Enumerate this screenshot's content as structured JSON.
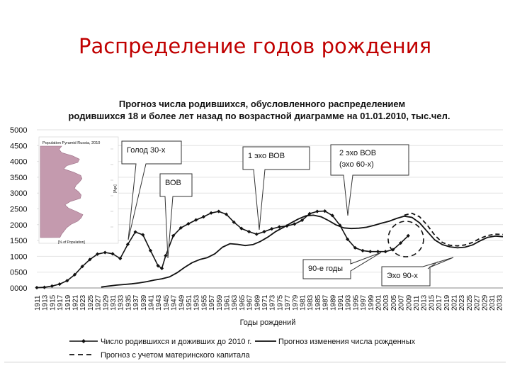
{
  "slide": {
    "title": "Распределение годов рождения"
  },
  "chart_data": {
    "type": "line",
    "title": "Прогноз числа родившихся, обусловленного распределением родившихся 18 и более лет назад по возрастной диаграмме на 01.01.2010, тыс.чел.",
    "title_lines": [
      "Прогноз числа родившихся, обусловленного распределением",
      "родившихся 18 и более лет назад  по возрастной диаграмме на 01.01.2010,  тыс.чел."
    ],
    "xlabel": "Годы рождений",
    "ylabel": "",
    "ylim": [
      0,
      5000
    ],
    "xlim": [
      1911,
      2034
    ],
    "y_tick_labels": [
      "0000",
      "0500",
      "1000",
      "1500",
      "2000",
      "2500",
      "3000",
      "3500",
      "4000",
      "4500",
      "5000"
    ],
    "x_tick_labels": [
      "1911",
      "1913",
      "1915",
      "1917",
      "1919",
      "1921",
      "1923",
      "1925",
      "1927",
      "1929",
      "1931",
      "1933",
      "1935",
      "1937",
      "1939",
      "1941",
      "1943",
      "1945",
      "1947",
      "1949",
      "1951",
      "1953",
      "1955",
      "1957",
      "1959",
      "1961",
      "1963",
      "1965",
      "1967",
      "1969",
      "1971",
      "1973",
      "1975",
      "1977",
      "1979",
      "1981",
      "1983",
      "1985",
      "1987",
      "1989",
      "1991",
      "1993",
      "1995",
      "1997",
      "1999",
      "2001",
      "2003",
      "2005",
      "2007",
      "2009",
      "2011",
      "2013",
      "2015",
      "2017",
      "2019",
      "2021",
      "2023",
      "2025",
      "2027",
      "2029",
      "2031",
      "2033"
    ],
    "grid": "horizontal",
    "legend_position": "bottom",
    "series": [
      {
        "name": "Число родившихся и доживших до 2010 г.",
        "style": "line-markers",
        "color": "#111111",
        "x": [
          1911,
          1913,
          1915,
          1917,
          1919,
          1921,
          1923,
          1925,
          1927,
          1929,
          1931,
          1933,
          1935,
          1937,
          1939,
          1941,
          1943,
          1944,
          1945,
          1947,
          1949,
          1951,
          1953,
          1955,
          1957,
          1959,
          1961,
          1963,
          1965,
          1967,
          1969,
          1971,
          1973,
          1975,
          1977,
          1979,
          1981,
          1983,
          1985,
          1987,
          1989,
          1991,
          1993,
          1995,
          1997,
          1999,
          2001,
          2003,
          2005,
          2007,
          2009
        ],
        "y": [
          10,
          20,
          60,
          120,
          230,
          420,
          680,
          900,
          1070,
          1120,
          1080,
          930,
          1380,
          1770,
          1680,
          1180,
          700,
          620,
          1020,
          1650,
          1900,
          2030,
          2150,
          2250,
          2370,
          2420,
          2330,
          2080,
          1880,
          1780,
          1700,
          1780,
          1870,
          1930,
          1960,
          2020,
          2140,
          2350,
          2420,
          2430,
          2290,
          1980,
          1540,
          1270,
          1180,
          1150,
          1150,
          1150,
          1210,
          1420,
          1650
        ]
      },
      {
        "name": "Прогноз изменения числа рожденных",
        "style": "line",
        "color": "#111111",
        "x": [
          1928,
          1930,
          1932,
          1934,
          1936,
          1938,
          1940,
          1942,
          1944,
          1946,
          1948,
          1950,
          1952,
          1954,
          1956,
          1958,
          1960,
          1962,
          1964,
          1966,
          1968,
          1970,
          1972,
          1974,
          1976,
          1978,
          1980,
          1982,
          1984,
          1986,
          1988,
          1990,
          1992,
          1994,
          1996,
          1998,
          2000,
          2002,
          2004,
          2006,
          2008,
          2010,
          2012,
          2014,
          2016,
          2018,
          2020,
          2022,
          2024,
          2026,
          2028,
          2030,
          2032,
          2034
        ],
        "y": [
          30,
          60,
          90,
          110,
          130,
          160,
          200,
          250,
          290,
          350,
          480,
          650,
          800,
          900,
          960,
          1080,
          1290,
          1400,
          1380,
          1340,
          1370,
          1470,
          1610,
          1780,
          1910,
          2050,
          2180,
          2280,
          2300,
          2250,
          2130,
          1990,
          1900,
          1880,
          1890,
          1920,
          1980,
          2050,
          2110,
          2200,
          2270,
          2230,
          2060,
          1790,
          1520,
          1370,
          1300,
          1270,
          1290,
          1360,
          1490,
          1600,
          1640,
          1620
        ]
      },
      {
        "name": "Прогноз с учетом материнского капитала",
        "style": "dashed",
        "color": "#111111",
        "x": [
          2008,
          2010,
          2012,
          2014,
          2016,
          2018,
          2020,
          2022,
          2024,
          2026,
          2028,
          2030,
          2032,
          2034
        ],
        "y": [
          2300,
          2360,
          2250,
          1990,
          1670,
          1440,
          1350,
          1330,
          1360,
          1440,
          1570,
          1660,
          1700,
          1690
        ]
      }
    ],
    "annotations": [
      {
        "text": "Голод 30-х"
      },
      {
        "text": "ВОВ"
      },
      {
        "text": "1 эхо ВОВ"
      },
      {
        "text": "2 эхо ВОВ (эхо 60-х)",
        "lines": [
          "2 эхо ВОВ",
          "(эхо 60-х)"
        ]
      },
      {
        "text": "90-е годы"
      },
      {
        "text": "Эхо 90-х"
      }
    ]
  },
  "inset": {
    "title": "Population Pyramid Russia, 2010",
    "xlabel": "[% of Population]",
    "ylabel": "[Age]"
  }
}
